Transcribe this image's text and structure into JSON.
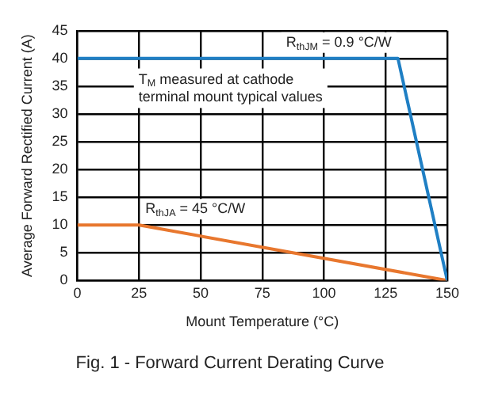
{
  "chart_data": {
    "type": "line",
    "title": "Fig. 1 - Forward Current Derating Curve",
    "xlabel": "Mount Temperature (°C)",
    "ylabel": "Average Forward Rectified Current (A)",
    "annotations": [
      "T$_{M}$ measured at cathode terminal mount typical values"
    ],
    "series": [
      {
        "name": "R$_{thJM}$ = 0.9 °C/W",
        "color": "#1f7fc4",
        "x": [
          0,
          130,
          150
        ],
        "values": [
          40,
          40,
          0
        ]
      },
      {
        "name": "R$_{thJA}$ = 45 °C/W",
        "color": "#e8772e",
        "x": [
          0,
          25,
          150
        ],
        "values": [
          10,
          10,
          0
        ]
      }
    ],
    "xlim": [
      0,
      150
    ],
    "xticks": [
      0,
      25,
      50,
      75,
      100,
      125,
      150
    ],
    "ylim": [
      0,
      45
    ],
    "yticks": [
      0,
      5,
      10,
      15,
      20,
      25,
      30,
      35,
      40,
      45
    ],
    "grid": true,
    "legend": false,
    "marker": "none",
    "line_style": "solid"
  }
}
